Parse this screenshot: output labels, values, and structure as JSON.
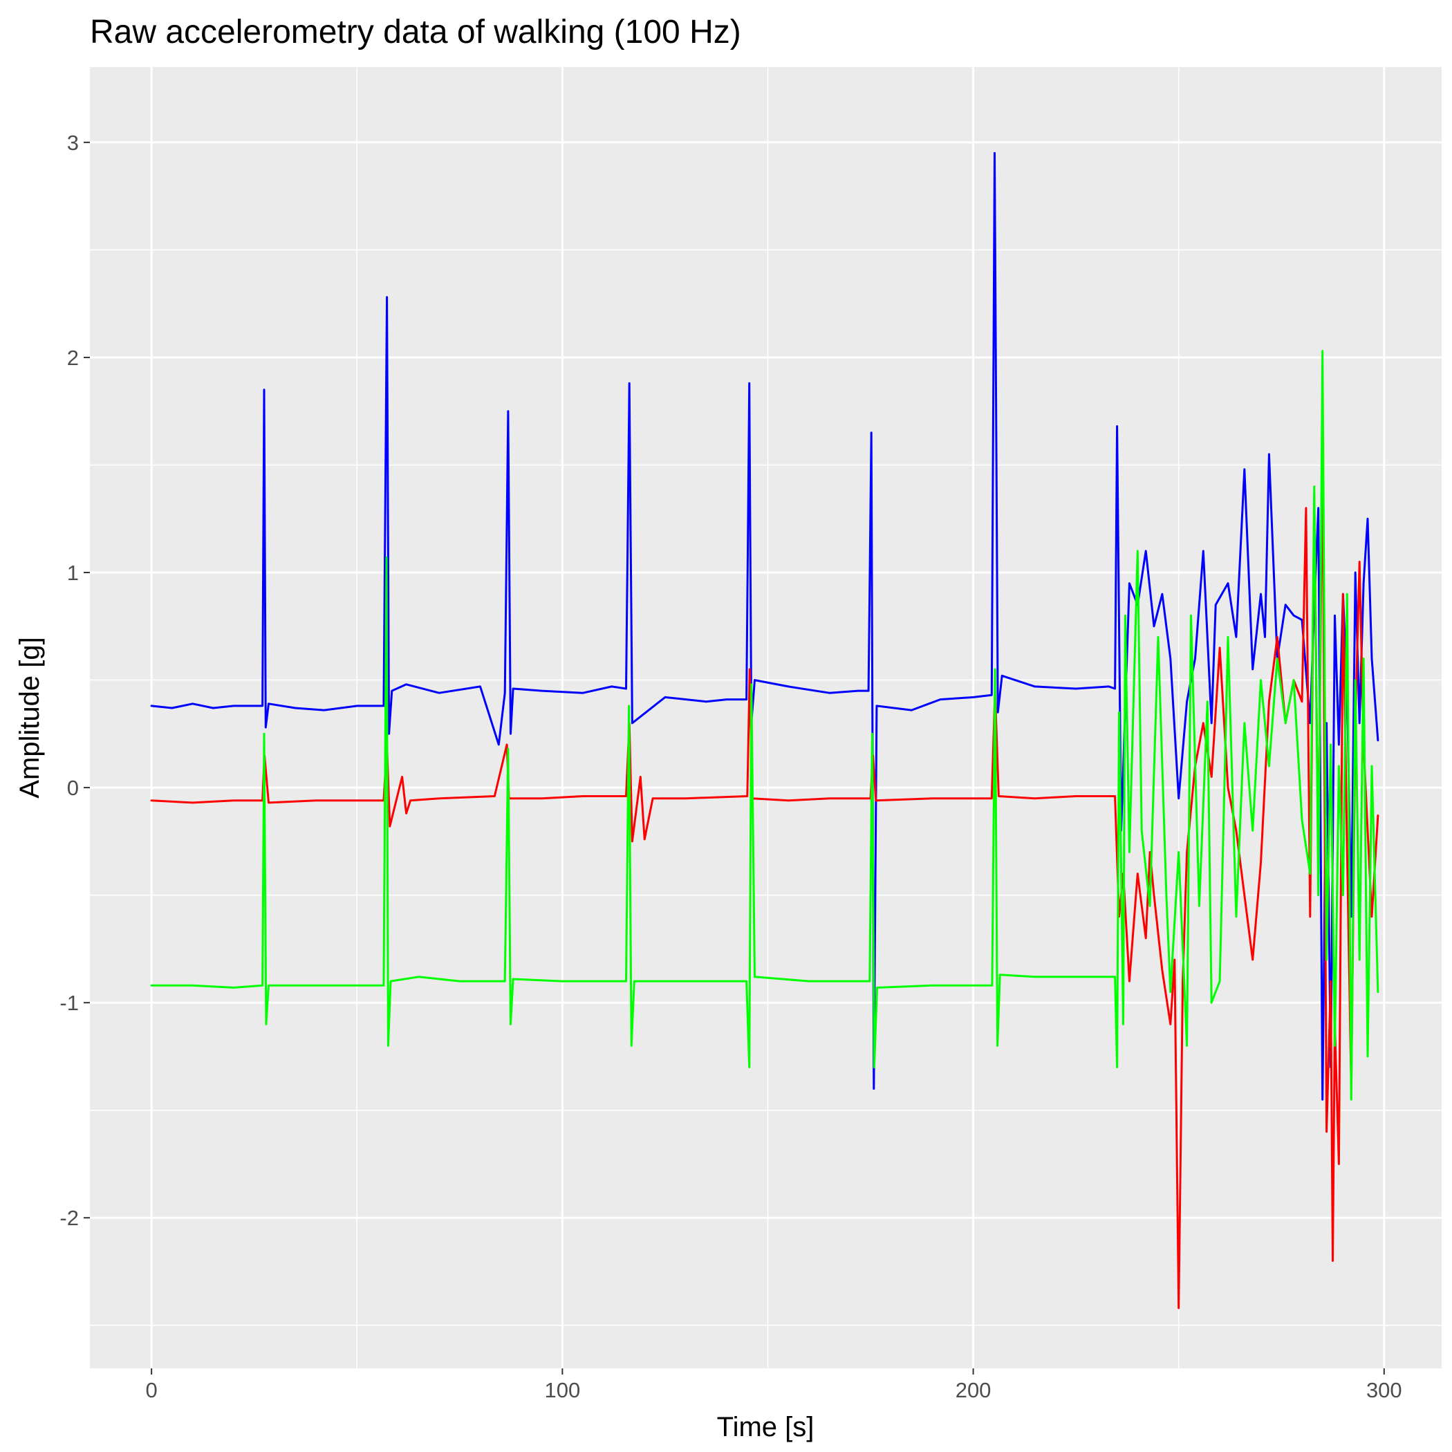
{
  "chart_data": {
    "type": "line",
    "title": "Raw accelerometry data of walking (100 Hz)",
    "xlabel": "Time [s]",
    "ylabel": "Amplitude [g]",
    "xlim": [
      -15,
      314
    ],
    "ylim": [
      -2.7,
      3.35
    ],
    "x_ticks": [
      0,
      100,
      200,
      300
    ],
    "x_tick_labels": [
      "0",
      "100",
      "200",
      "300"
    ],
    "y_ticks": [
      -2,
      -1,
      0,
      1,
      2,
      3
    ],
    "y_tick_labels": [
      "-2",
      "-1",
      "0",
      "1",
      "2",
      "3"
    ],
    "grid": true,
    "legend": "none",
    "panel_background": "#ebebeb",
    "grid_color": "#ffffff",
    "series": [
      {
        "color": "#0000ff",
        "x": [
          0,
          5,
          10,
          15,
          20,
          27,
          27.4,
          27.8,
          28.5,
          35,
          42,
          50,
          56.5,
          57.3,
          57.8,
          58.5,
          62,
          70,
          80,
          84.5,
          86,
          86.8,
          87.4,
          88,
          95,
          105,
          112,
          115.5,
          116.3,
          117,
          125,
          135,
          140,
          144.8,
          145.5,
          146,
          146.8,
          155,
          165,
          172,
          174.5,
          175.2,
          175.8,
          176.5,
          185,
          192,
          200,
          204.5,
          205.2,
          206,
          207,
          215,
          225,
          233,
          234.5,
          235,
          236,
          238,
          240,
          242,
          244,
          246,
          248,
          250,
          252,
          254,
          256,
          258,
          259,
          262,
          264,
          266,
          268,
          270,
          271,
          272,
          274,
          276,
          278,
          280,
          282,
          283,
          284,
          285,
          286,
          287,
          288,
          289,
          290,
          291,
          292,
          293,
          294,
          295,
          296,
          297,
          298.5
        ],
        "y": [
          0.38,
          0.37,
          0.39,
          0.37,
          0.38,
          0.38,
          1.85,
          0.28,
          0.39,
          0.37,
          0.36,
          0.38,
          0.38,
          2.28,
          0.25,
          0.45,
          0.48,
          0.44,
          0.47,
          0.2,
          0.44,
          1.75,
          0.25,
          0.46,
          0.45,
          0.44,
          0.47,
          0.46,
          1.88,
          0.3,
          0.42,
          0.4,
          0.41,
          0.41,
          1.88,
          0.3,
          0.5,
          0.47,
          0.44,
          0.45,
          0.45,
          1.65,
          -1.4,
          0.38,
          0.36,
          0.41,
          0.42,
          0.43,
          2.95,
          0.35,
          0.52,
          0.47,
          0.46,
          0.47,
          0.46,
          1.68,
          -0.2,
          0.95,
          0.85,
          1.1,
          0.75,
          0.9,
          0.6,
          -0.05,
          0.4,
          0.6,
          1.1,
          0.3,
          0.85,
          0.95,
          0.7,
          1.48,
          0.55,
          0.9,
          0.7,
          1.55,
          0.6,
          0.85,
          0.8,
          0.78,
          0.3,
          0.85,
          1.3,
          -1.45,
          0.3,
          -1.3,
          0.8,
          0.2,
          0.9,
          0.45,
          -0.6,
          1.0,
          0.3,
          0.95,
          1.25,
          0.6,
          0.22
        ]
      },
      {
        "color": "#ff0000",
        "x": [
          0,
          10,
          20,
          27,
          27.5,
          28.5,
          40,
          56.5,
          57.3,
          58,
          61,
          62,
          63,
          70,
          83.5,
          86.5,
          87,
          95,
          105,
          115.5,
          116.3,
          117,
          119,
          120,
          122,
          130,
          145,
          145.6,
          146.2,
          155,
          165,
          175,
          175.6,
          176.3,
          190,
          204.5,
          205.3,
          206.2,
          215,
          225,
          234.5,
          235.5,
          236.5,
          238,
          240,
          242,
          243,
          244,
          246,
          248,
          249,
          250,
          251,
          252,
          254,
          256,
          258,
          260,
          262,
          264,
          266,
          268,
          270,
          272,
          274,
          276,
          278,
          280,
          281,
          282,
          283,
          284,
          285,
          286,
          287,
          287.5,
          288,
          289,
          290,
          291,
          292,
          293,
          294,
          295,
          296,
          297,
          298.5
        ],
        "y": [
          -0.06,
          -0.07,
          -0.06,
          -0.06,
          0.15,
          -0.07,
          -0.06,
          -0.06,
          0.2,
          -0.18,
          0.05,
          -0.12,
          -0.06,
          -0.05,
          -0.04,
          0.2,
          -0.05,
          -0.05,
          -0.04,
          -0.04,
          0.3,
          -0.25,
          0.05,
          -0.24,
          -0.05,
          -0.05,
          -0.04,
          0.55,
          -0.05,
          -0.06,
          -0.05,
          -0.05,
          0.15,
          -0.06,
          -0.05,
          -0.05,
          0.45,
          -0.04,
          -0.05,
          -0.04,
          -0.04,
          -0.6,
          -0.4,
          -0.9,
          -0.4,
          -0.7,
          -0.3,
          -0.5,
          -0.85,
          -1.1,
          -0.8,
          -2.42,
          -0.9,
          -0.3,
          0.1,
          0.3,
          0.05,
          0.65,
          0.0,
          -0.2,
          -0.5,
          -0.8,
          -0.35,
          0.4,
          0.7,
          0.3,
          0.5,
          0.4,
          1.3,
          -0.6,
          1.35,
          -0.4,
          1.65,
          -1.6,
          -0.9,
          -2.2,
          -1.1,
          -1.75,
          0.9,
          -0.3,
          -1.4,
          0.3,
          1.05,
          0.2,
          -0.2,
          -0.6,
          -0.13
        ]
      },
      {
        "color": "#00ff00",
        "x": [
          0,
          10,
          20,
          27,
          27.4,
          27.9,
          28.5,
          40,
          56.5,
          57.2,
          57.6,
          58.2,
          65,
          75,
          86,
          86.8,
          87.4,
          88,
          100,
          115.5,
          116.2,
          116.8,
          117.5,
          130,
          144.8,
          145.5,
          146,
          146.8,
          160,
          174.8,
          175.4,
          175.9,
          176.6,
          190,
          204.6,
          205.3,
          205.9,
          206.5,
          215,
          225,
          234.5,
          235,
          235.5,
          236.5,
          237,
          238,
          240,
          241,
          243,
          245,
          247,
          248,
          250,
          252,
          253,
          255,
          257,
          258,
          260,
          262,
          264,
          266,
          268,
          270,
          272,
          274,
          276,
          278,
          280,
          282,
          283,
          284,
          285,
          286,
          287,
          288,
          289,
          290,
          291,
          292,
          293,
          294,
          295,
          296,
          297,
          298.5
        ],
        "y": [
          -0.92,
          -0.92,
          -0.93,
          -0.92,
          0.25,
          -1.1,
          -0.92,
          -0.92,
          -0.92,
          1.07,
          -1.2,
          -0.9,
          -0.88,
          -0.9,
          -0.9,
          0.18,
          -1.1,
          -0.89,
          -0.9,
          -0.9,
          0.38,
          -1.2,
          -0.9,
          -0.9,
          -0.9,
          -1.3,
          0.48,
          -0.88,
          -0.9,
          -0.9,
          0.25,
          -1.3,
          -0.93,
          -0.92,
          -0.92,
          0.55,
          -1.2,
          -0.87,
          -0.88,
          -0.88,
          -0.88,
          -1.3,
          0.35,
          -1.1,
          0.8,
          -0.3,
          1.1,
          -0.2,
          -0.55,
          0.7,
          -0.5,
          -0.95,
          -0.3,
          -1.2,
          0.8,
          -0.55,
          0.4,
          -1.0,
          -0.9,
          0.7,
          -0.6,
          0.3,
          -0.2,
          0.5,
          0.1,
          0.6,
          0.3,
          0.5,
          -0.15,
          -0.4,
          1.4,
          -0.5,
          2.03,
          -0.8,
          0.2,
          -1.2,
          0.1,
          -0.5,
          0.9,
          -1.45,
          0.5,
          -0.8,
          0.6,
          -1.25,
          0.1,
          -0.95
        ]
      }
    ]
  }
}
